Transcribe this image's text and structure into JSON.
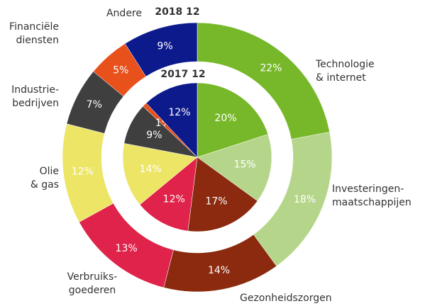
{
  "chart_data": {
    "type": "nested-donut",
    "categories": [
      "Technologie\n& internet",
      "Investeringen-\nmaatschappijen",
      "Gezonheidszorgen",
      "Verbruiks-\ngoederen",
      "Olie\n& gas",
      "Industrie-\nbedrijven",
      "Financiële\ndiensten",
      "Andere"
    ],
    "colors": [
      "#77b82a",
      "#b5d68a",
      "#8b2a0e",
      "#e0234a",
      "#ede565",
      "#3f3f3f",
      "#e8501c",
      "#0c1a8c"
    ],
    "series": [
      {
        "name": "2018 12",
        "values": [
          22,
          18,
          14,
          13,
          12,
          7,
          5,
          9
        ],
        "value_labels": [
          "22%",
          "18%",
          "14%",
          "13%",
          "12%",
          "7%",
          "5%",
          "9%"
        ]
      },
      {
        "name": "2017 12",
        "values": [
          20,
          15,
          17,
          12,
          14,
          9,
          1,
          12
        ],
        "value_labels": [
          "20%",
          "15%",
          "17%",
          "12%",
          "14%",
          "9%",
          "1%",
          "12%"
        ]
      }
    ]
  }
}
